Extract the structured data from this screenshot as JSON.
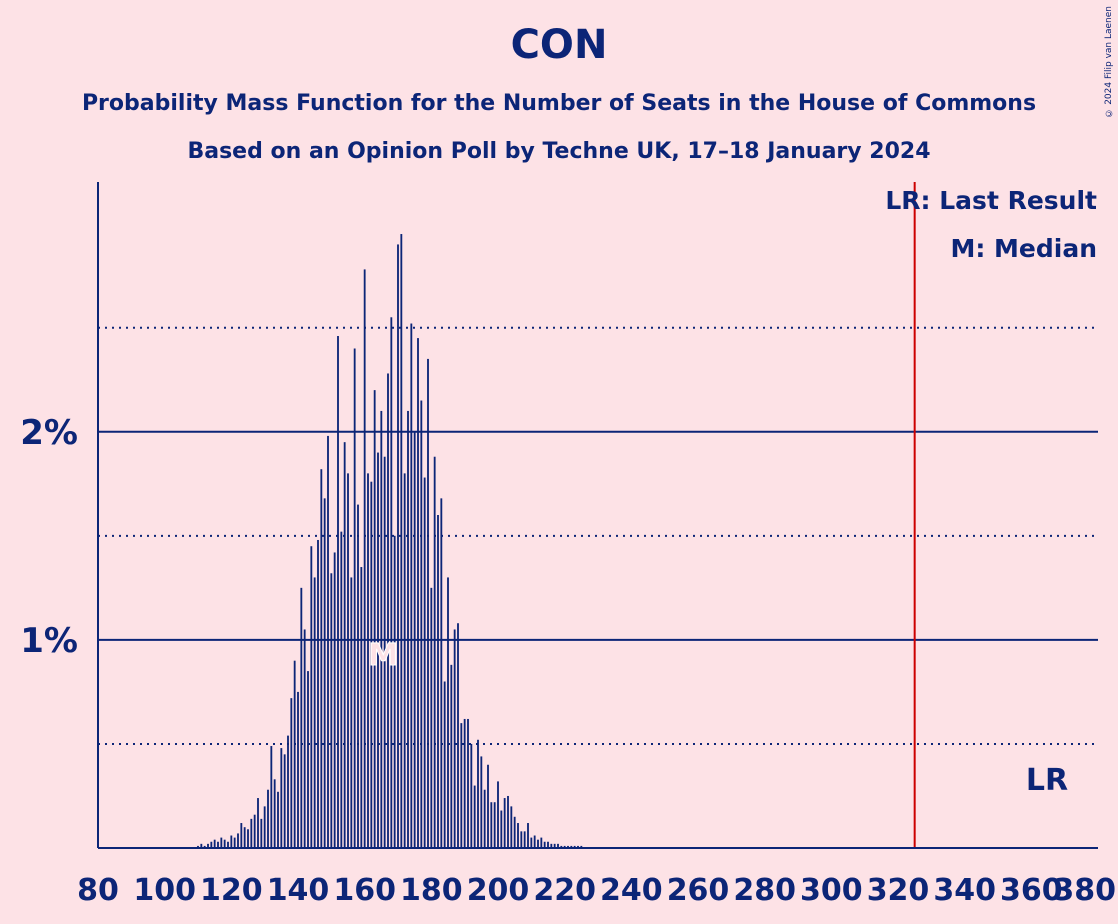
{
  "title": "CON",
  "subtitle_1": "Probability Mass Function for the Number of Seats in the House of Commons",
  "subtitle_2": "Based on an Opinion Poll by Techne UK, 17–18 January 2024",
  "copyright": "© 2024 Filip van Laenen",
  "colors": {
    "background": "#fde2e6",
    "bars": "#0c2577",
    "last_result": "#cc0000"
  },
  "chart_data": {
    "type": "bar",
    "x_axis_ticks": [
      "80",
      "100",
      "120",
      "140",
      "160",
      "180",
      "200",
      "220",
      "240",
      "260",
      "280",
      "300",
      "320",
      "340",
      "360",
      "380"
    ],
    "y_axis_ticks": [
      "1%",
      "2%"
    ],
    "xlim": [
      80,
      380
    ],
    "ylim": [
      0,
      3.2
    ],
    "solid_gridlines": [
      1,
      2
    ],
    "dotted_gridlines": [
      0.5,
      1.5,
      2.5
    ],
    "legend": {
      "last_result": "LR: Last Result",
      "median": "M: Median"
    },
    "last_result": {
      "seats": 325,
      "label": "LR"
    },
    "median": {
      "seats": 165,
      "label": "M"
    },
    "x": [
      110,
      111,
      112,
      113,
      114,
      115,
      116,
      117,
      118,
      119,
      120,
      121,
      122,
      123,
      124,
      125,
      126,
      127,
      128,
      129,
      130,
      131,
      132,
      133,
      134,
      135,
      136,
      137,
      138,
      139,
      140,
      141,
      142,
      143,
      144,
      145,
      146,
      147,
      148,
      149,
      150,
      151,
      152,
      153,
      154,
      155,
      156,
      157,
      158,
      159,
      160,
      161,
      162,
      163,
      164,
      165,
      166,
      167,
      168,
      169,
      170,
      171,
      172,
      173,
      174,
      175,
      176,
      177,
      178,
      179,
      180,
      181,
      182,
      183,
      184,
      185,
      186,
      187,
      188,
      189,
      190,
      191,
      192,
      193,
      194,
      195,
      196,
      197,
      198,
      199,
      200,
      201,
      202,
      203,
      204,
      205,
      206,
      207,
      208,
      209,
      210,
      211,
      212,
      213,
      214,
      215,
      216,
      217,
      218,
      219,
      220,
      221,
      222,
      223,
      224,
      225
    ],
    "values": [
      0.01,
      0.02,
      0.01,
      0.02,
      0.03,
      0.04,
      0.03,
      0.05,
      0.04,
      0.03,
      0.06,
      0.05,
      0.07,
      0.12,
      0.1,
      0.09,
      0.14,
      0.16,
      0.24,
      0.14,
      0.2,
      0.28,
      0.49,
      0.33,
      0.27,
      0.48,
      0.45,
      0.54,
      0.72,
      0.9,
      0.75,
      1.25,
      1.05,
      0.85,
      1.45,
      1.3,
      1.48,
      1.82,
      1.68,
      1.98,
      1.32,
      1.42,
      2.46,
      1.52,
      1.95,
      1.8,
      1.3,
      2.4,
      1.65,
      1.35,
      2.78,
      1.8,
      1.76,
      2.2,
      1.9,
      2.1,
      1.88,
      2.28,
      2.55,
      1.5,
      2.9,
      2.95,
      1.8,
      2.1,
      2.52,
      2.0,
      2.45,
      2.15,
      1.78,
      2.35,
      1.25,
      1.88,
      1.6,
      1.68,
      0.8,
      1.3,
      0.88,
      1.05,
      1.08,
      0.6,
      0.62,
      0.62,
      0.5,
      0.3,
      0.52,
      0.44,
      0.28,
      0.4,
      0.22,
      0.22,
      0.32,
      0.18,
      0.24,
      0.25,
      0.2,
      0.15,
      0.12,
      0.08,
      0.08,
      0.12,
      0.05,
      0.06,
      0.04,
      0.05,
      0.03,
      0.03,
      0.02,
      0.02,
      0.02,
      0.01,
      0.01,
      0.01,
      0.01,
      0.01,
      0.01,
      0.01
    ]
  }
}
